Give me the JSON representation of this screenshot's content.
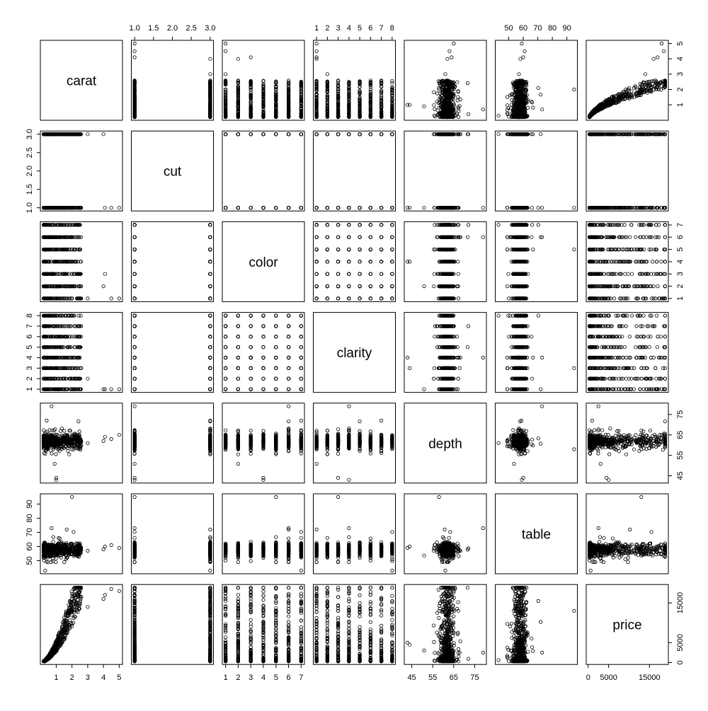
{
  "chart_data": {
    "type": "scatter",
    "kind": "scatterplot-matrix",
    "title": "",
    "variables": [
      "carat",
      "cut",
      "color",
      "clarity",
      "depth",
      "table",
      "price"
    ],
    "ranges": {
      "carat": [
        0.2,
        5.0
      ],
      "cut": [
        1,
        3
      ],
      "color": [
        1,
        7
      ],
      "clarity": [
        1,
        8
      ],
      "depth": [
        43,
        79
      ],
      "table": [
        43,
        95
      ],
      "price": [
        326,
        18823
      ]
    },
    "axis_ticks": {
      "carat": [
        "1",
        "2",
        "3",
        "4",
        "5"
      ],
      "cut": [
        "1.0",
        "1.5",
        "2.0",
        "2.5",
        "3.0"
      ],
      "color": [
        "1",
        "2",
        "3",
        "4",
        "5",
        "6",
        "7"
      ],
      "clarity": [
        "1",
        "2",
        "3",
        "4",
        "5",
        "6",
        "7",
        "8"
      ],
      "depth": [
        "45",
        "55",
        "65",
        "75"
      ],
      "table": [
        "50",
        "60",
        "70",
        "80",
        "90"
      ],
      "price": [
        "0",
        "5000",
        "15000"
      ]
    },
    "axis_tick_values": {
      "carat": [
        1,
        2,
        3,
        4,
        5
      ],
      "cut": [
        1.0,
        1.5,
        2.0,
        2.5,
        3.0
      ],
      "color": [
        1,
        2,
        3,
        4,
        5,
        6,
        7
      ],
      "clarity": [
        1,
        2,
        3,
        4,
        5,
        6,
        7,
        8
      ],
      "depth": [
        45,
        55,
        65,
        75
      ],
      "table": [
        50,
        60,
        70,
        80,
        90
      ],
      "price": [
        0,
        5000,
        15000
      ]
    },
    "point_style": "open-circle",
    "point_color": "#000000",
    "grid": false,
    "legend": "none",
    "summary": {
      "carat_max_by_color": [
        4.5,
        4.0,
        4.1,
        2.5,
        3.5,
        2.5,
        3.3
      ],
      "carat_max_by_clarity": [
        5.0,
        3.0,
        2.6,
        2.5,
        2.4,
        2.0,
        1.7,
        1.6
      ],
      "price_max": 18823,
      "depth_outliers": [
        43,
        44,
        79
      ],
      "table_outliers": [
        95
      ]
    }
  }
}
